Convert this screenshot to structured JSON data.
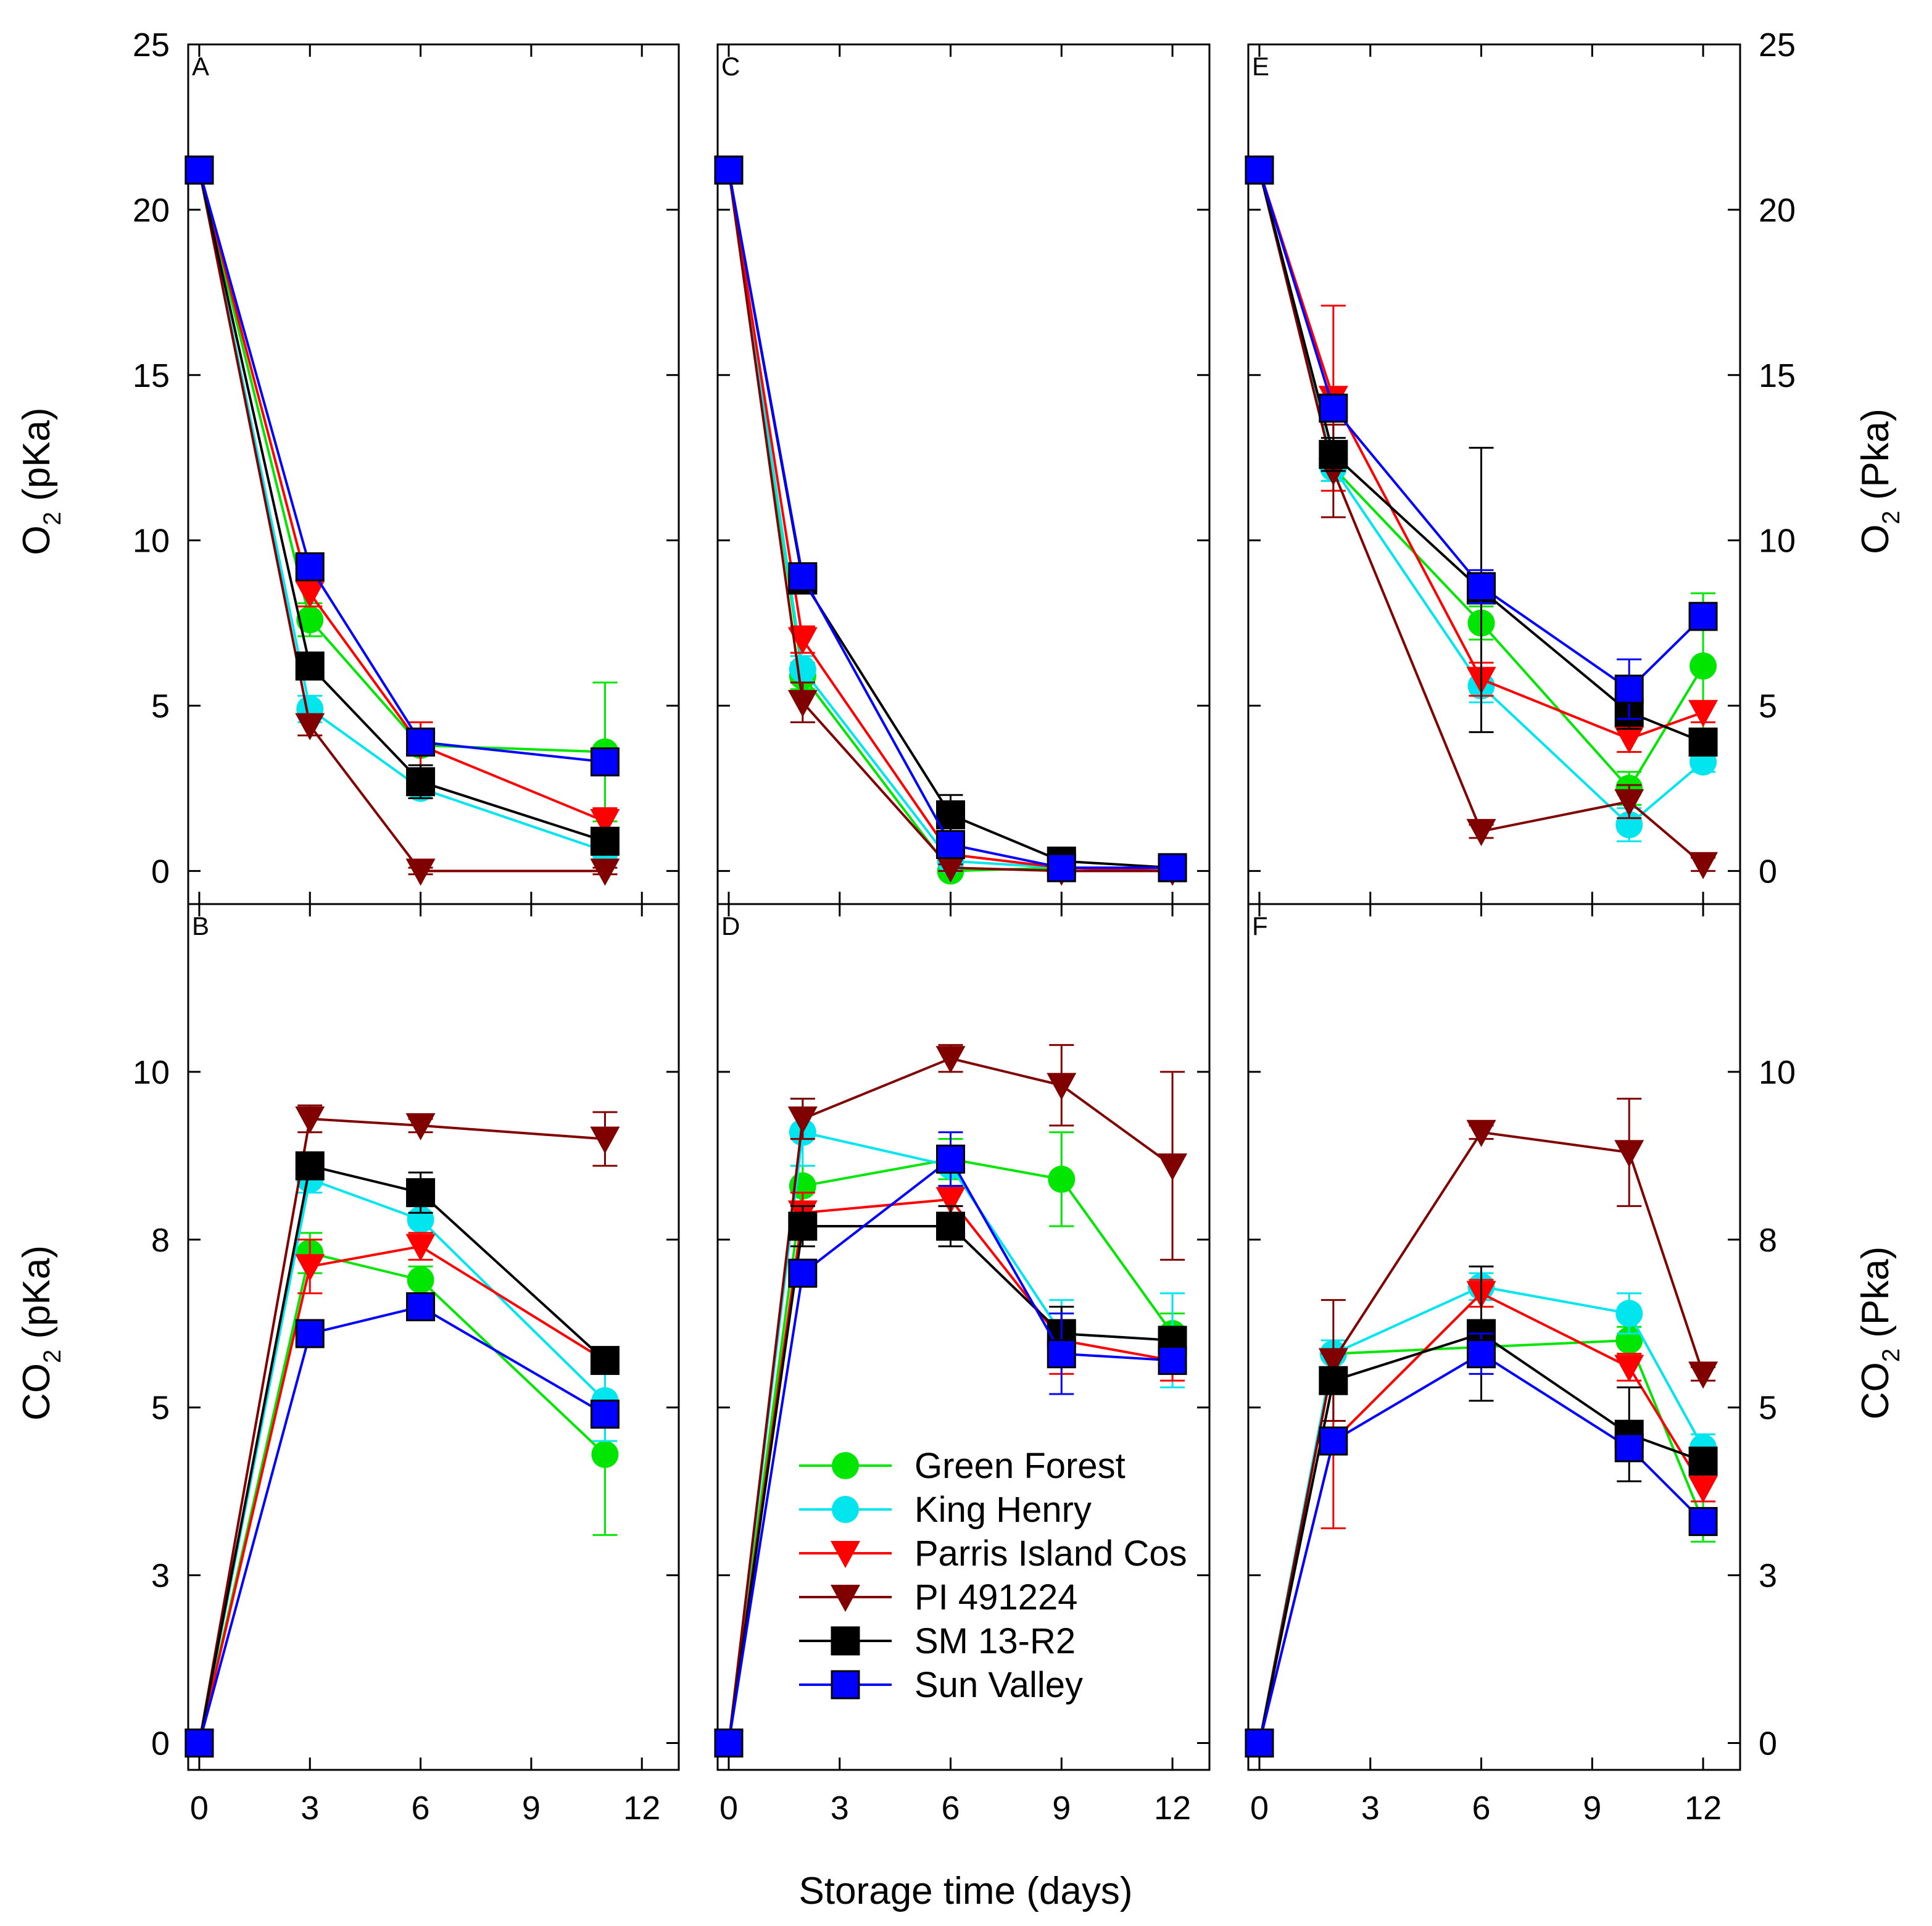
{
  "figure": {
    "x_axis_title": "Storage time (days)",
    "left_top_ylabel": {
      "main": "O",
      "sub": "2",
      "rest": " (pKa)"
    },
    "left_bottom_ylabel": {
      "main": "CO",
      "sub": "2",
      "rest": " (pKa)"
    },
    "right_top_ylabel": {
      "main": "O",
      "sub": "2",
      "rest": " (Pka)"
    },
    "right_bottom_ylabel": {
      "main": "CO",
      "sub": "2",
      "rest": " (Pka)"
    }
  },
  "series_styles": [
    {
      "name": "Green Forest",
      "color": "#00e600",
      "marker": "circle"
    },
    {
      "name": "King Henry",
      "color": "#00e5ee",
      "marker": "circle"
    },
    {
      "name": "Parris Island Cos",
      "color": "#ff0000",
      "marker": "triangle-down"
    },
    {
      "name": "PI 491224",
      "color": "#800000",
      "marker": "triangle-down"
    },
    {
      "name": "SM 13-R2",
      "color": "#000000",
      "marker": "square"
    },
    {
      "name": "Sun Valley",
      "color": "#0000ff",
      "marker": "square"
    }
  ],
  "chart_data": [
    {
      "panel": "A",
      "type": "line",
      "xlabel": "Storage time (days)",
      "ylabel": "O2 (pKa)",
      "xlim": [
        -0.3,
        13
      ],
      "ylim": [
        -1,
        25
      ],
      "xticks": [
        0,
        3,
        6,
        9,
        12
      ],
      "yticks": [
        0,
        5,
        10,
        15,
        20,
        25
      ],
      "x": [
        0,
        3,
        6,
        11
      ],
      "series": [
        {
          "name": "Green Forest",
          "values": [
            21.2,
            7.6,
            3.8,
            3.6
          ],
          "errors": [
            0.1,
            0.5,
            0.3,
            2.1
          ]
        },
        {
          "name": "King Henry",
          "values": [
            21.2,
            4.9,
            2.5,
            0.6
          ],
          "errors": [
            0.1,
            0.4,
            0.3,
            0.2
          ]
        },
        {
          "name": "Parris Island Cos",
          "values": [
            21.2,
            8.4,
            3.8,
            1.5
          ],
          "errors": [
            0.1,
            0.4,
            0.7,
            0.4
          ]
        },
        {
          "name": "PI 491224",
          "values": [
            21.2,
            4.4,
            0.0,
            0.0
          ],
          "errors": [
            0.1,
            0.3,
            0.1,
            0.1
          ]
        },
        {
          "name": "SM 13-R2",
          "values": [
            21.2,
            6.2,
            2.7,
            0.9
          ],
          "errors": [
            0.1,
            0.3,
            0.5,
            0.3
          ]
        },
        {
          "name": "Sun Valley",
          "values": [
            21.2,
            9.2,
            3.9,
            3.3
          ],
          "errors": [
            0.1,
            0.3,
            0.3,
            0.3
          ]
        }
      ]
    },
    {
      "panel": "C",
      "type": "line",
      "xlabel": "Storage time (days)",
      "ylabel": "O2 (pKa)",
      "xlim": [
        -0.3,
        13
      ],
      "ylim": [
        -1,
        25
      ],
      "xticks": [
        0,
        3,
        6,
        9,
        12
      ],
      "yticks": [
        0,
        5,
        10,
        15,
        20,
        25
      ],
      "x": [
        0,
        2,
        6,
        9,
        12
      ],
      "series": [
        {
          "name": "Green Forest",
          "values": [
            21.2,
            5.9,
            0.0,
            0.1,
            0.1
          ],
          "errors": [
            0.1,
            0.4,
            0.1,
            0.1,
            0.1
          ]
        },
        {
          "name": "King Henry",
          "values": [
            21.2,
            6.1,
            0.3,
            0.1,
            0.1
          ],
          "errors": [
            0.1,
            0.4,
            0.1,
            0.1,
            0.1
          ]
        },
        {
          "name": "Parris Island Cos",
          "values": [
            21.2,
            7.0,
            0.5,
            0.1,
            0.0
          ],
          "errors": [
            0.1,
            0.4,
            0.1,
            0.1,
            0.1
          ]
        },
        {
          "name": "PI 491224",
          "values": [
            21.2,
            5.1,
            0.1,
            0.0,
            0.0
          ],
          "errors": [
            0.1,
            0.6,
            0.1,
            0.1,
            0.1
          ]
        },
        {
          "name": "SM 13-R2",
          "values": [
            21.2,
            8.8,
            1.7,
            0.3,
            0.1
          ],
          "errors": [
            0.1,
            0.4,
            0.6,
            0.2,
            0.1
          ]
        },
        {
          "name": "Sun Valley",
          "values": [
            21.2,
            8.9,
            0.8,
            0.1,
            0.1
          ],
          "errors": [
            0.1,
            0.3,
            0.2,
            0.1,
            0.1
          ]
        }
      ]
    },
    {
      "panel": "E",
      "type": "line",
      "xlabel": "Storage time (days)",
      "ylabel": "O2 (Pka)",
      "xlim": [
        -0.3,
        13
      ],
      "ylim": [
        -1,
        25
      ],
      "xticks": [
        0,
        3,
        6,
        9,
        12
      ],
      "yticks": [
        0,
        5,
        10,
        15,
        20,
        25
      ],
      "x": [
        0,
        2,
        6,
        10,
        12
      ],
      "series": [
        {
          "name": "Green Forest",
          "values": [
            21.2,
            12.2,
            7.5,
            2.5,
            6.2
          ],
          "errors": [
            0.1,
            0.4,
            0.5,
            0.5,
            2.2
          ]
        },
        {
          "name": "King Henry",
          "values": [
            21.2,
            12.2,
            5.6,
            1.4,
            3.3
          ],
          "errors": [
            0.1,
            0.4,
            0.5,
            0.5,
            0.3
          ]
        },
        {
          "name": "Parris Island Cos",
          "values": [
            21.2,
            14.3,
            5.8,
            4.0,
            4.8
          ],
          "errors": [
            0.1,
            2.8,
            0.5,
            0.4,
            0.3
          ]
        },
        {
          "name": "PI 491224",
          "values": [
            21.2,
            12.1,
            1.2,
            2.1,
            0.2
          ],
          "errors": [
            0.1,
            1.4,
            0.2,
            0.5,
            0.2
          ]
        },
        {
          "name": "SM 13-R2",
          "values": [
            21.2,
            12.6,
            8.5,
            4.8,
            3.9
          ],
          "errors": [
            0.1,
            0.5,
            4.3,
            0.5,
            0.3
          ]
        },
        {
          "name": "Sun Valley",
          "values": [
            21.2,
            14.0,
            8.6,
            5.5,
            7.7
          ],
          "errors": [
            0.1,
            0.3,
            0.5,
            0.9,
            0.3
          ]
        }
      ]
    },
    {
      "panel": "B",
      "type": "line",
      "xlabel": "Storage time (days)",
      "ylabel": "CO2 (pKa)",
      "xlim": [
        -0.3,
        13
      ],
      "ylim": [
        -0.4,
        12.5
      ],
      "xticks": [
        0,
        3,
        6,
        9,
        12
      ],
      "yticks": [
        0,
        3,
        5,
        8,
        10
      ],
      "ytick_values": [
        0,
        2.5,
        5,
        7.5,
        10
      ],
      "x": [
        0,
        3,
        6,
        11
      ],
      "series": [
        {
          "name": "Green Forest",
          "values": [
            0.0,
            7.3,
            6.9,
            4.3
          ],
          "errors": [
            0.05,
            0.3,
            0.2,
            1.2
          ]
        },
        {
          "name": "King Henry",
          "values": [
            0.0,
            8.4,
            7.8,
            5.1
          ],
          "errors": [
            0.05,
            0.2,
            0.2,
            0.6
          ]
        },
        {
          "name": "Parris Island Cos",
          "values": [
            0.0,
            7.1,
            7.4,
            5.7
          ],
          "errors": [
            0.05,
            0.4,
            0.2,
            0.2
          ]
        },
        {
          "name": "PI 491224",
          "values": [
            0.0,
            9.3,
            9.2,
            9.0
          ],
          "errors": [
            0.05,
            0.2,
            0.1,
            0.4
          ]
        },
        {
          "name": "SM 13-R2",
          "values": [
            0.0,
            8.6,
            8.2,
            5.7
          ],
          "errors": [
            0.05,
            0.1,
            0.3,
            0.1
          ]
        },
        {
          "name": "Sun Valley",
          "values": [
            0.0,
            6.1,
            6.5,
            4.9
          ],
          "errors": [
            0.05,
            0.2,
            0.2,
            0.2
          ]
        }
      ]
    },
    {
      "panel": "D",
      "type": "line",
      "xlabel": "Storage time (days)",
      "ylabel": "CO2 (pKa)",
      "xlim": [
        -0.3,
        13
      ],
      "ylim": [
        -0.4,
        12.5
      ],
      "xticks": [
        0,
        3,
        6,
        9,
        12
      ],
      "yticks": [
        0,
        3,
        5,
        8,
        10
      ],
      "ytick_values": [
        0,
        2.5,
        5,
        7.5,
        10
      ],
      "x": [
        0,
        2,
        6,
        9,
        12
      ],
      "series": [
        {
          "name": "Green Forest",
          "values": [
            0.0,
            8.3,
            8.7,
            8.4,
            6.1
          ],
          "errors": [
            0.05,
            0.3,
            0.3,
            0.7,
            0.3
          ]
        },
        {
          "name": "King Henry",
          "values": [
            0.0,
            9.1,
            8.6,
            6.1,
            6.0
          ],
          "errors": [
            0.05,
            0.5,
            0.3,
            0.5,
            0.7
          ]
        },
        {
          "name": "Parris Island Cos",
          "values": [
            0.0,
            7.9,
            8.1,
            6.0,
            5.7
          ],
          "errors": [
            0.05,
            0.3,
            0.2,
            0.5,
            0.3
          ]
        },
        {
          "name": "PI 491224",
          "values": [
            0.0,
            9.3,
            10.2,
            9.8,
            8.6
          ],
          "errors": [
            0.05,
            0.3,
            0.2,
            0.6,
            1.4
          ]
        },
        {
          "name": "SM 13-R2",
          "values": [
            0.0,
            7.7,
            7.7,
            6.1,
            6.0
          ],
          "errors": [
            0.05,
            0.3,
            0.3,
            0.4,
            0.2
          ]
        },
        {
          "name": "Sun Valley",
          "values": [
            0.0,
            7.0,
            8.7,
            5.8,
            5.7
          ],
          "errors": [
            0.05,
            0.2,
            0.4,
            0.6,
            0.2
          ]
        }
      ]
    },
    {
      "panel": "F",
      "type": "line",
      "xlabel": "Storage time (days)",
      "ylabel": "CO2 (Pka)",
      "xlim": [
        -0.3,
        13
      ],
      "ylim": [
        -0.4,
        12.5
      ],
      "xticks": [
        0,
        3,
        6,
        9,
        12
      ],
      "yticks": [
        0,
        3,
        5,
        8,
        10
      ],
      "ytick_values": [
        0,
        2.5,
        5,
        7.5,
        10
      ],
      "x": [
        0,
        2,
        6,
        10,
        12
      ],
      "series": [
        {
          "name": "Green Forest",
          "values": [
            0.0,
            5.8,
            5.9,
            6.0,
            3.3
          ],
          "errors": [
            0.05,
            0.2,
            0.2,
            0.2,
            0.3
          ]
        },
        {
          "name": "King Henry",
          "values": [
            0.0,
            5.8,
            6.8,
            6.4,
            4.4
          ],
          "errors": [
            0.05,
            0.2,
            0.2,
            0.3,
            0.2
          ]
        },
        {
          "name": "Parris Island Cos",
          "values": [
            0.0,
            4.5,
            6.7,
            5.6,
            3.8
          ],
          "errors": [
            0.05,
            1.3,
            0.2,
            0.2,
            0.2
          ]
        },
        {
          "name": "PI 491224",
          "values": [
            0.0,
            5.7,
            9.1,
            8.8,
            5.5
          ],
          "errors": [
            0.05,
            0.9,
            0.1,
            0.8,
            0.1
          ]
        },
        {
          "name": "SM 13-R2",
          "values": [
            0.0,
            5.4,
            6.1,
            4.6,
            4.2
          ],
          "errors": [
            0.05,
            0.2,
            1.0,
            0.7,
            0.1
          ]
        },
        {
          "name": "Sun Valley",
          "values": [
            0.0,
            4.5,
            5.8,
            4.4,
            3.3
          ],
          "errors": [
            0.05,
            0.1,
            0.3,
            0.2,
            0.1
          ]
        }
      ]
    }
  ]
}
